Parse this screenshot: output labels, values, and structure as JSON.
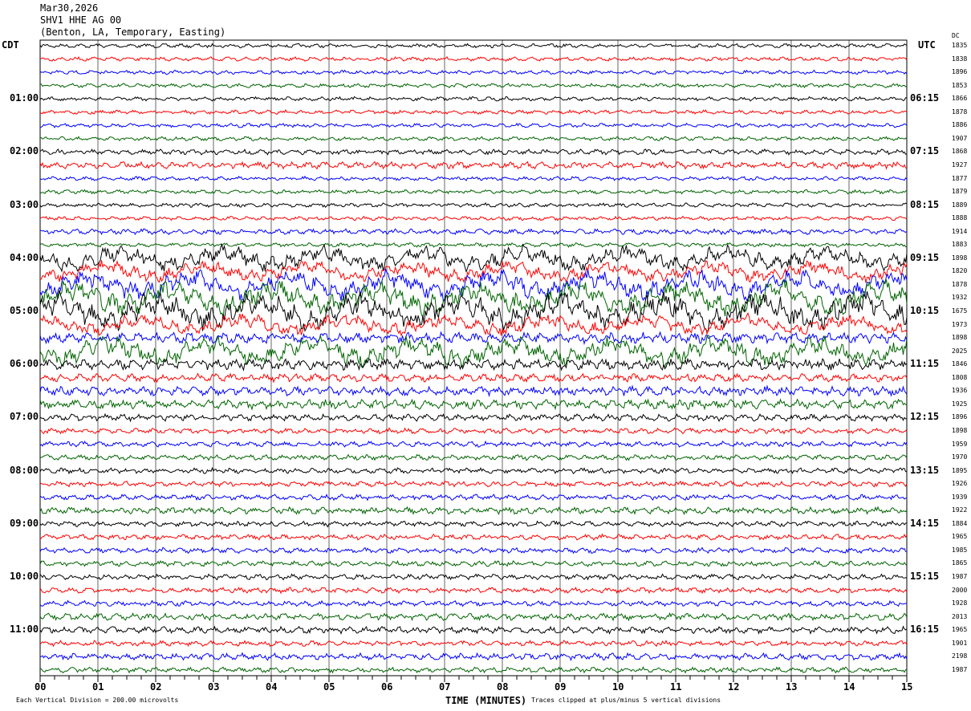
{
  "header": {
    "date": "Mar30,2026",
    "station": "SHV1 HHE AG 00",
    "location": "(Benton, LA, Temporary, Easting)"
  },
  "left_axis_title": "CDT",
  "right_axis_title": "UTC",
  "dc_title": "DC",
  "footer": {
    "scale": "Each Vertical Division =  200.00 microvolts",
    "clip": "Traces clipped at plus/minus 5 vertical divisions"
  },
  "chart_data": {
    "type": "line",
    "title": "SHV1 HHE AG 00",
    "xlabel": "TIME (MINUTES)",
    "xlim": [
      0,
      15
    ],
    "x_ticks": [
      "00",
      "01",
      "02",
      "03",
      "04",
      "05",
      "06",
      "07",
      "08",
      "09",
      "10",
      "11",
      "12",
      "13",
      "14",
      "15"
    ],
    "left_hour_labels": [
      "01:00",
      "02:00",
      "03:00",
      "04:00",
      "05:00",
      "06:00",
      "07:00",
      "08:00",
      "09:00",
      "10:00",
      "11:00"
    ],
    "right_hour_labels": [
      "06:15",
      "07:15",
      "08:15",
      "09:15",
      "10:15",
      "11:15",
      "12:15",
      "13:15",
      "14:15",
      "15:15",
      "16:15"
    ],
    "trace_colors": [
      "#000000",
      "#ff0000",
      "#0000ff",
      "#006400"
    ],
    "dc_offsets": [
      1835,
      1838,
      1896,
      1853,
      1866,
      1878,
      1886,
      1907,
      1868,
      1927,
      1877,
      1879,
      1889,
      1888,
      1914,
      1883,
      1898,
      1820,
      1878,
      1932,
      1675,
      1973,
      1898,
      2025,
      1846,
      1808,
      1936,
      1925,
      1896,
      1898,
      1959,
      1970,
      1895,
      1926,
      1939,
      1922,
      1884,
      1965,
      1985,
      1865,
      1987,
      2000,
      1928,
      2013,
      1965,
      1901,
      2198,
      1987
    ],
    "relative_amplitude": [
      3,
      3,
      3,
      3,
      3,
      3,
      3,
      3,
      4,
      5,
      3,
      3,
      3,
      3,
      4,
      3,
      12,
      10,
      14,
      16,
      18,
      10,
      8,
      14,
      8,
      6,
      7,
      7,
      5,
      4,
      4,
      4,
      4,
      4,
      4,
      5,
      4,
      4,
      4,
      4,
      4,
      4,
      4,
      5,
      5,
      4,
      5,
      4
    ]
  }
}
